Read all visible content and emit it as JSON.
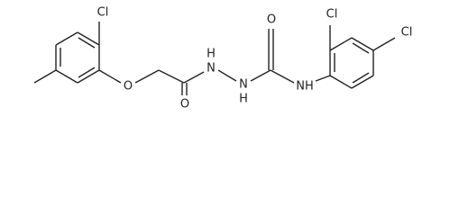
{
  "atoms": {
    "labels": [
      "Cl",
      "O",
      "O",
      "H",
      "N",
      "N",
      "H",
      "O",
      "NH",
      "Cl",
      "Cl"
    ]
  }
}
